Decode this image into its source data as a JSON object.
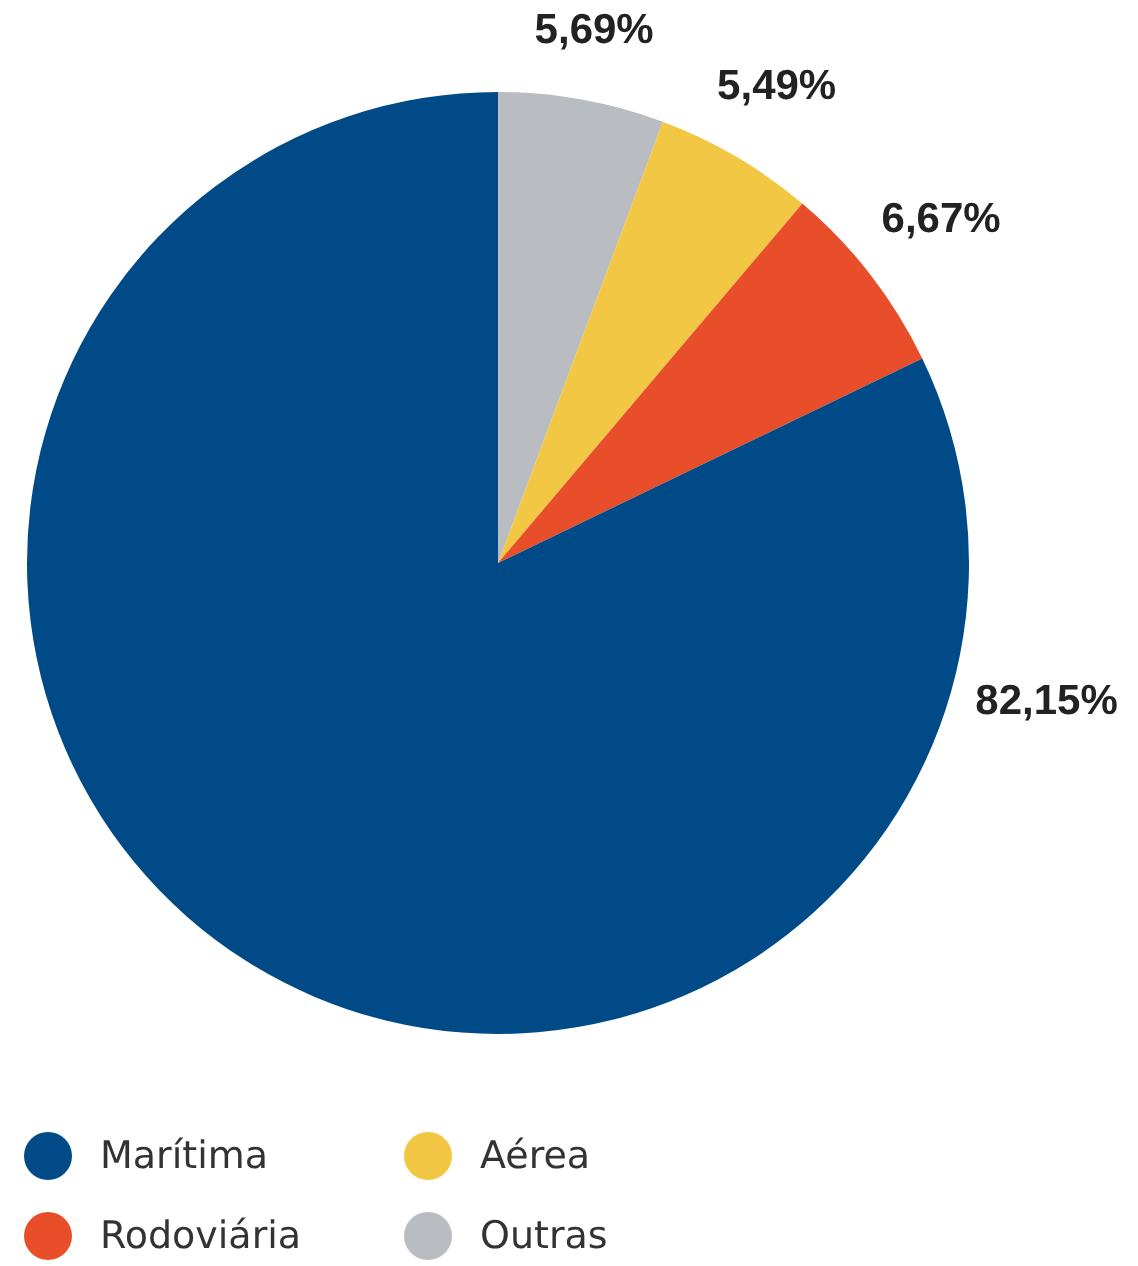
{
  "chart_data": {
    "type": "pie",
    "categories": [
      "Outras",
      "Aérea",
      "Rodoviária",
      "Marítima"
    ],
    "values": [
      5.69,
      5.49,
      6.67,
      82.15
    ],
    "colors": [
      "#b9bcc1",
      "#f2c744",
      "#e94e2b",
      "#004a87"
    ],
    "value_labels": [
      "5,69%",
      "5,49%",
      "6,67%",
      "82,15%"
    ],
    "legend": "bottom left"
  }
}
